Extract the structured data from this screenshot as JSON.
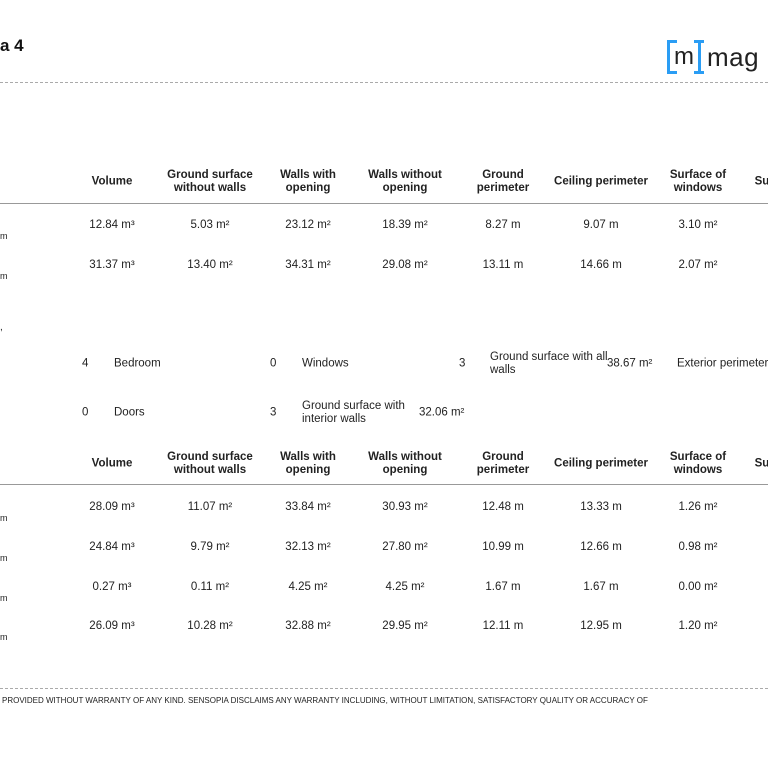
{
  "header": {
    "title": "a 4",
    "logo_letter": "m",
    "logo_text": "mag",
    "logo_color": "#2a9df4"
  },
  "table1": {
    "columns": [
      "Volume",
      "Ground surface without walls",
      "Walls with opening",
      "Walls without opening",
      "Ground perimeter",
      "Ceiling perimeter",
      "Surface of windows",
      "Su"
    ],
    "rows": [
      {
        "unit": "m",
        "values": [
          "12.84 m³",
          "5.03 m²",
          "23.12 m²",
          "18.39 m²",
          "8.27 m",
          "9.07 m",
          "3.10 m²"
        ]
      },
      {
        "unit": "m",
        "values": [
          "31.37 m³",
          "13.40 m²",
          "34.31 m²",
          "29.08 m²",
          "13.11 m",
          "14.66 m",
          "2.07 m²"
        ]
      }
    ]
  },
  "fragment_mark": ",",
  "summary": {
    "row1": {
      "count1": "4",
      "label1": "Bedroom",
      "count2": "0",
      "label2": "Windows",
      "count3": "3",
      "label3": "Ground surface with all walls",
      "value3": "38.67 m²",
      "label4": "Exterior perimeter"
    },
    "row2": {
      "count1": "0",
      "label1": "Doors",
      "count2": "3",
      "label2": "Ground surface with interior walls",
      "value2": "32.06 m²"
    }
  },
  "table2": {
    "columns": [
      "Volume",
      "Ground surface without walls",
      "Walls with opening",
      "Walls without opening",
      "Ground perimeter",
      "Ceiling perimeter",
      "Surface of windows",
      "Su"
    ],
    "rows": [
      {
        "unit": "m",
        "values": [
          "28.09 m³",
          "11.07 m²",
          "33.84 m²",
          "30.93 m²",
          "12.48 m",
          "13.33 m",
          "1.26 m²"
        ]
      },
      {
        "unit": "m",
        "values": [
          "24.84 m³",
          "9.79 m²",
          "32.13 m²",
          "27.80 m²",
          "10.99 m",
          "12.66 m",
          "0.98 m²"
        ]
      },
      {
        "unit": "m",
        "values": [
          "0.27 m³",
          "0.11 m²",
          "4.25 m²",
          "4.25 m²",
          "1.67 m",
          "1.67 m",
          "0.00 m²"
        ]
      },
      {
        "unit": "m",
        "values": [
          "26.09 m³",
          "10.28 m²",
          "32.88 m²",
          "29.95 m²",
          "12.11 m",
          "12.95 m",
          "1.20 m²"
        ]
      }
    ]
  },
  "footer": {
    "disclaimer": "PROVIDED WITHOUT WARRANTY OF ANY KIND. SENSOPIA DISCLAIMS ANY WARRANTY INCLUDING, WITHOUT LIMITATION, SATISFACTORY QUALITY OR ACCURACY OF"
  }
}
